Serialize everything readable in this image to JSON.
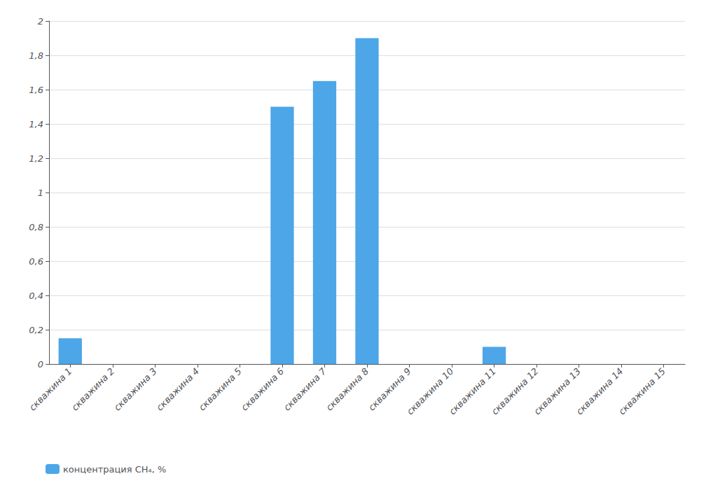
{
  "chart_data": {
    "type": "bar",
    "categories": [
      "скважина 1",
      "скважина 2",
      "скважина 3",
      "скважина 4",
      "скважина 5",
      "скважина 6",
      "скважина 7",
      "скважина 8",
      "скважина 9",
      "скважина 10",
      "скважина 11",
      "скважина 12",
      "скважина 13",
      "скважина 14",
      "скважина 15"
    ],
    "series": [
      {
        "name": "концентрация CH₄, %",
        "color": "#4da6e8",
        "values": [
          0.15,
          0.0,
          0.0,
          0.0,
          0.0,
          1.5,
          1.65,
          1.9,
          0.0,
          0.0,
          0.1,
          0.0,
          0.0,
          0.0,
          0.0
        ]
      }
    ],
    "ylim": [
      0,
      2.0
    ],
    "yticks": [
      0,
      {
        "value": 0.2,
        "label": "0,2"
      },
      {
        "value": 0.4,
        "label": "0,4"
      },
      {
        "value": 0.6,
        "label": "0,6"
      },
      {
        "value": 0.8,
        "label": "0,8"
      },
      1,
      {
        "value": 1.2,
        "label": "1,2"
      },
      {
        "value": 1.4,
        "label": "1,4"
      },
      {
        "value": 1.6,
        "label": "1,6"
      },
      {
        "value": 1.8,
        "label": "1,8"
      },
      2
    ],
    "grid": true,
    "legend": "bottom left"
  }
}
